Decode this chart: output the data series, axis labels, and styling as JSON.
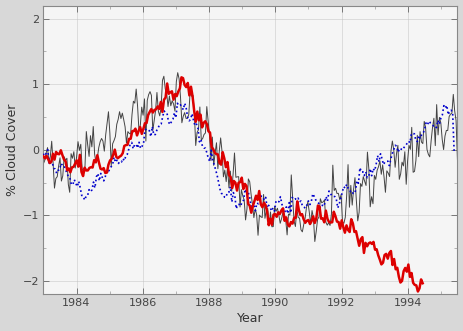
{
  "title": "",
  "xlabel": "Year",
  "ylabel": "% Cloud Cover",
  "xlim": [
    1983.0,
    1995.5
  ],
  "ylim": [
    -2.2,
    2.2
  ],
  "xticks": [
    1984,
    1986,
    1988,
    1990,
    1992,
    1994
  ],
  "yticks": [
    -2,
    -1,
    0,
    1,
    2
  ],
  "bg_color": "#d8d8d8",
  "plot_bg_color": "#f5f5f5",
  "red_color": "#dd0000",
  "blue_color": "#0000cc",
  "gray_color": "#444444",
  "red_lw": 1.8,
  "blue_lw": 1.2,
  "gray_lw": 0.7
}
